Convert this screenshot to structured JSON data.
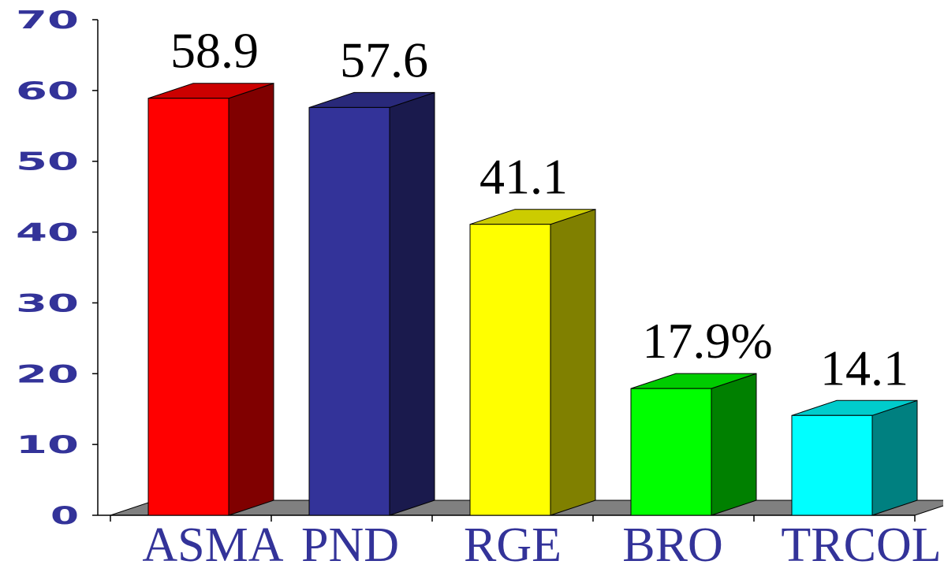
{
  "chart_data": {
    "type": "bar",
    "categories": [
      "ASMA",
      "PND",
      "RGE",
      "BRO",
      "TRCOL"
    ],
    "values": [
      58.9,
      57.6,
      41.1,
      17.9,
      14.1
    ],
    "data_labels": [
      "58.9",
      "57.6",
      "41.1",
      "17.9%",
      "14.1"
    ],
    "ylim": [
      0,
      70
    ],
    "yticks": [
      0,
      10,
      20,
      30,
      40,
      50,
      60,
      70
    ],
    "grid": false,
    "bar_colors": [
      {
        "front": "#FF0000",
        "top": "#CC0000",
        "side": "#800000"
      },
      {
        "front": "#333399",
        "top": "#29297A",
        "side": "#1A1A4D"
      },
      {
        "front": "#FFFF00",
        "top": "#CCCC00",
        "side": "#808000"
      },
      {
        "front": "#00FF00",
        "top": "#00CC00",
        "side": "#008000"
      },
      {
        "front": "#00FFFF",
        "top": "#00CCCC",
        "side": "#008080"
      }
    ],
    "floor_color": "#808080",
    "axis_label_color": "#333399",
    "data_label_color": "#000000"
  }
}
